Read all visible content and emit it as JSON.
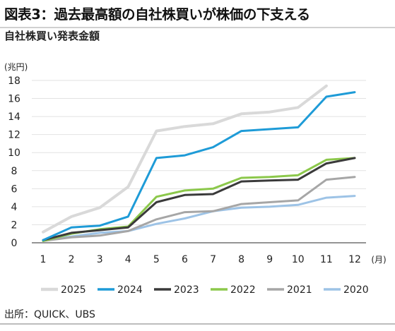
{
  "title": "図表3：過去最高額の自社株買いが株価の下支える",
  "subtitle": "自社株買い発表金額",
  "source": "出所：QUICK、UBS",
  "chart_data": {
    "type": "line",
    "y_unit_label": "(兆円)",
    "x_unit_label": "(月)",
    "x": [
      1,
      2,
      3,
      4,
      5,
      6,
      7,
      8,
      9,
      10,
      11,
      12
    ],
    "x_tick_labels": [
      "1",
      "2",
      "3",
      "4",
      "5",
      "6",
      "7",
      "8",
      "9",
      "10",
      "11",
      "12"
    ],
    "y_ticks": [
      0,
      2,
      4,
      6,
      8,
      10,
      12,
      14,
      16,
      18
    ],
    "ylim": [
      0,
      18
    ],
    "grid": true,
    "legend_position": "bottom",
    "series": [
      {
        "name": "2025",
        "color": "#d9d9d9",
        "width": 4,
        "x": [
          1,
          2,
          3,
          4,
          5,
          6,
          7,
          8,
          9,
          10,
          11
        ],
        "values": [
          1.2,
          2.9,
          3.9,
          6.2,
          12.4,
          12.9,
          13.2,
          14.3,
          14.5,
          15.0,
          17.4
        ]
      },
      {
        "name": "2024",
        "color": "#1e9bd7",
        "width": 3,
        "x": [
          1,
          2,
          3,
          4,
          5,
          6,
          7,
          8,
          9,
          10,
          11,
          12
        ],
        "values": [
          0.3,
          1.7,
          1.9,
          2.9,
          9.4,
          9.7,
          10.6,
          12.4,
          12.6,
          12.8,
          16.2,
          16.7
        ]
      },
      {
        "name": "2023",
        "color": "#3a3a3a",
        "width": 3,
        "x": [
          1,
          2,
          3,
          4,
          5,
          6,
          7,
          8,
          9,
          10,
          11,
          12
        ],
        "values": [
          0.3,
          1.1,
          1.4,
          1.7,
          4.5,
          5.3,
          5.4,
          6.8,
          6.9,
          7.0,
          8.8,
          9.4
        ]
      },
      {
        "name": "2022",
        "color": "#8cc84b",
        "width": 3,
        "x": [
          1,
          2,
          3,
          4,
          5,
          6,
          7,
          8,
          9,
          10,
          11,
          12
        ],
        "values": [
          0.2,
          1.0,
          1.5,
          1.8,
          5.1,
          5.8,
          6.0,
          7.2,
          7.3,
          7.5,
          9.2,
          9.4
        ]
      },
      {
        "name": "2021",
        "color": "#a6a6a6",
        "width": 3,
        "x": [
          1,
          2,
          3,
          4,
          5,
          6,
          7,
          8,
          9,
          10,
          11,
          12
        ],
        "values": [
          0.2,
          0.6,
          0.8,
          1.3,
          2.6,
          3.4,
          3.5,
          4.3,
          4.5,
          4.7,
          7.0,
          7.3
        ]
      },
      {
        "name": "2020",
        "color": "#9dc3e6",
        "width": 3,
        "x": [
          1,
          2,
          3,
          4,
          5,
          6,
          7,
          8,
          9,
          10,
          11,
          12
        ],
        "values": [
          0.3,
          0.7,
          1.1,
          1.3,
          2.1,
          2.7,
          3.5,
          3.9,
          4.0,
          4.2,
          5.0,
          5.2
        ]
      }
    ]
  }
}
